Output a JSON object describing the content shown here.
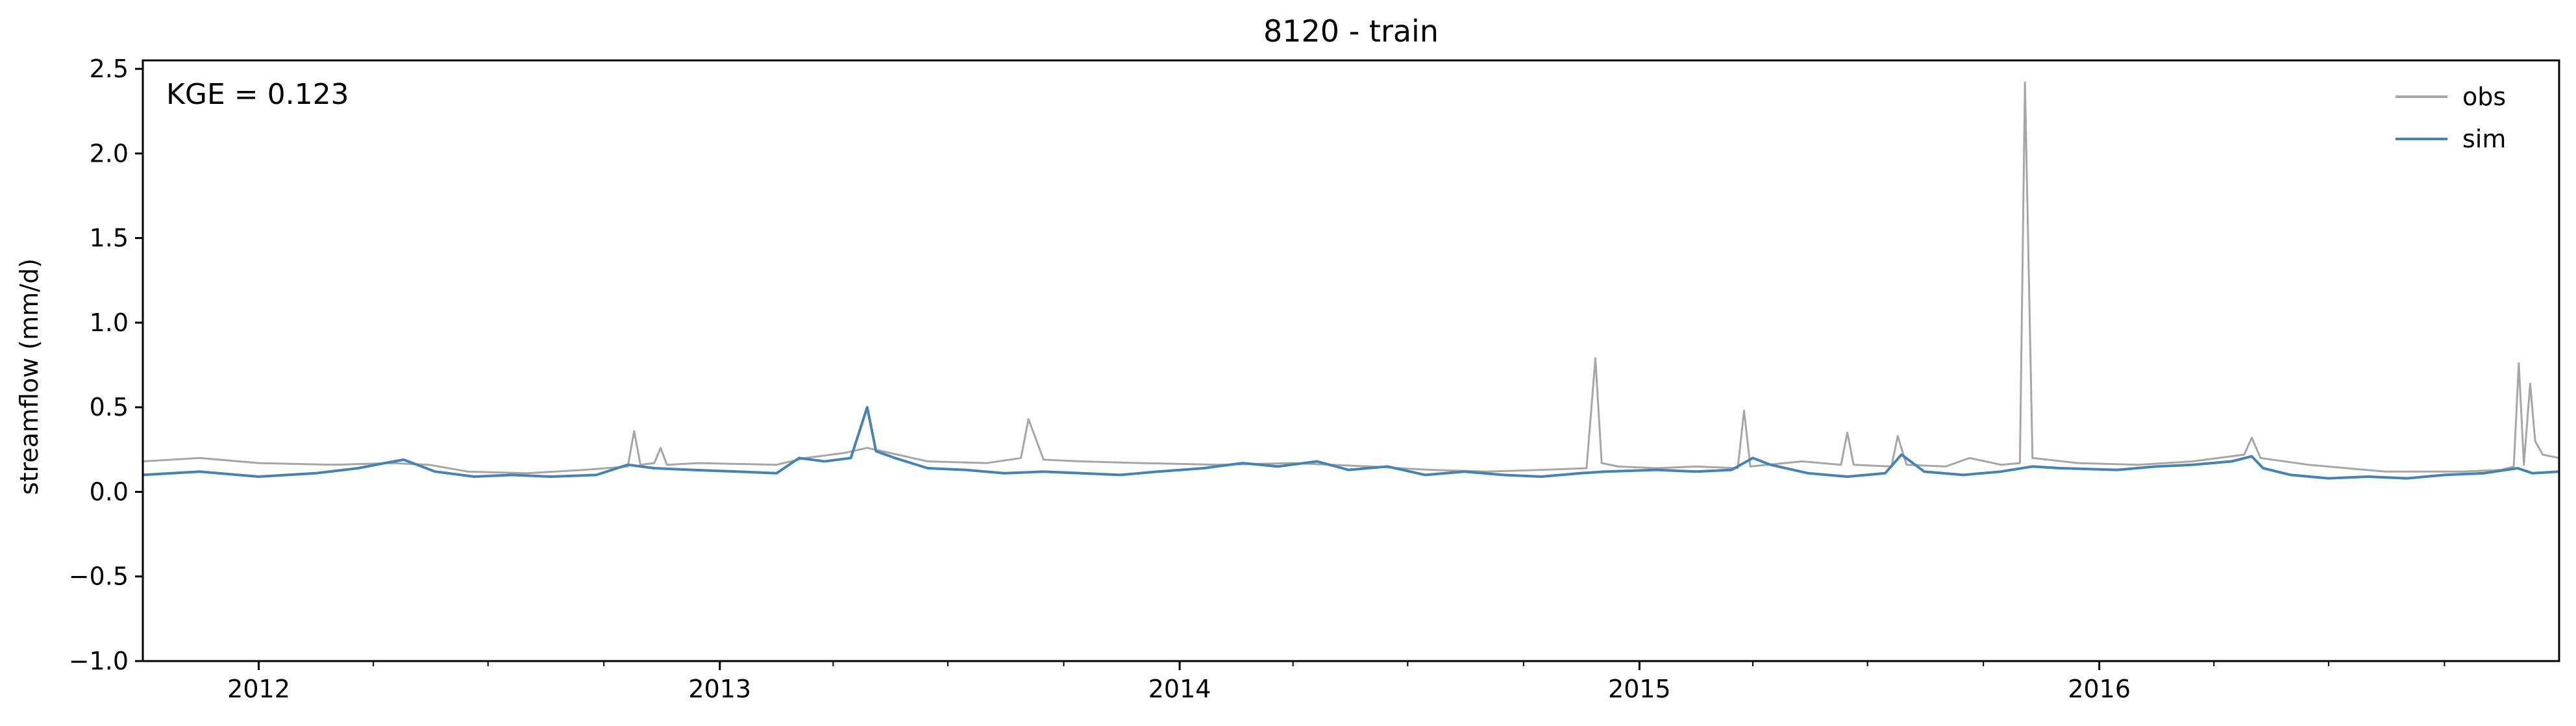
{
  "chart_data": {
    "type": "line",
    "title": "8120 - train",
    "xlabel": "",
    "ylabel": "streamflow (mm/d)",
    "annotation": "KGE = 0.123",
    "x_range": [
      "2011-10-01",
      "2016-12-31"
    ],
    "ylim": [
      -1.0,
      2.55
    ],
    "yticks": [
      -1.0,
      -0.5,
      0.0,
      0.5,
      1.0,
      1.5,
      2.0,
      2.5
    ],
    "ytick_labels": [
      "−1.0",
      "−0.5",
      "0.0",
      "0.5",
      "1.0",
      "1.5",
      "2.0",
      "2.5"
    ],
    "xticks": [
      "2012-01-01",
      "2013-01-01",
      "2014-01-01",
      "2015-01-01",
      "2016-01-01"
    ],
    "xtick_labels": [
      "2012",
      "2013",
      "2014",
      "2015",
      "2016"
    ],
    "grid": false,
    "legend": "top-right",
    "series": [
      {
        "name": "obs",
        "color": "#a6a6a6",
        "x": [
          "2011-10-01",
          "2011-11-15",
          "2012-01-01",
          "2012-03-01",
          "2012-04-15",
          "2012-05-15",
          "2012-06-15",
          "2012-08-01",
          "2012-09-15",
          "2012-10-20",
          "2012-10-25",
          "2012-10-30",
          "2012-11-10",
          "2012-11-15",
          "2012-11-20",
          "2012-12-15",
          "2013-02-15",
          "2013-03-10",
          "2013-04-10",
          "2013-04-28",
          "2013-05-10",
          "2013-06-15",
          "2013-08-01",
          "2013-08-28",
          "2013-09-03",
          "2013-09-15",
          "2013-10-15",
          "2013-12-01",
          "2014-02-01",
          "2014-04-01",
          "2014-06-01",
          "2014-07-20",
          "2014-09-01",
          "2014-10-15",
          "2014-11-20",
          "2014-11-27",
          "2014-12-02",
          "2014-12-15",
          "2015-01-15",
          "2015-02-15",
          "2015-03-20",
          "2015-03-25",
          "2015-03-30",
          "2015-05-10",
          "2015-06-10",
          "2015-06-15",
          "2015-06-20",
          "2015-07-20",
          "2015-07-25",
          "2015-08-01",
          "2015-09-01",
          "2015-09-20",
          "2015-10-15",
          "2015-10-30",
          "2015-11-03",
          "2015-11-09",
          "2015-12-15",
          "2016-02-01",
          "2016-03-15",
          "2016-04-25",
          "2016-05-01",
          "2016-05-08",
          "2016-06-15",
          "2016-08-15",
          "2016-10-15",
          "2016-11-15",
          "2016-11-25",
          "2016-11-29",
          "2016-12-03",
          "2016-12-08",
          "2016-12-12",
          "2016-12-18",
          "2016-12-31"
        ],
        "y": [
          0.18,
          0.2,
          0.17,
          0.16,
          0.17,
          0.16,
          0.12,
          0.11,
          0.13,
          0.15,
          0.36,
          0.16,
          0.17,
          0.26,
          0.16,
          0.17,
          0.16,
          0.2,
          0.23,
          0.26,
          0.24,
          0.18,
          0.17,
          0.2,
          0.43,
          0.19,
          0.18,
          0.17,
          0.16,
          0.17,
          0.15,
          0.13,
          0.12,
          0.13,
          0.14,
          0.79,
          0.17,
          0.15,
          0.14,
          0.15,
          0.14,
          0.48,
          0.15,
          0.18,
          0.16,
          0.35,
          0.16,
          0.15,
          0.33,
          0.16,
          0.15,
          0.2,
          0.16,
          0.17,
          2.42,
          0.2,
          0.17,
          0.16,
          0.18,
          0.22,
          0.32,
          0.2,
          0.16,
          0.12,
          0.12,
          0.13,
          0.15,
          0.76,
          0.16,
          0.64,
          0.3,
          0.22,
          0.2
        ]
      },
      {
        "name": "sim",
        "color": "#4682b4",
        "x": [
          "2011-10-01",
          "2011-11-15",
          "2012-01-01",
          "2012-02-15",
          "2012-03-20",
          "2012-04-10",
          "2012-04-25",
          "2012-05-20",
          "2012-06-20",
          "2012-07-20",
          "2012-08-20",
          "2012-09-25",
          "2012-10-20",
          "2012-11-10",
          "2012-12-10",
          "2013-01-15",
          "2013-02-15",
          "2013-03-05",
          "2013-03-25",
          "2013-04-15",
          "2013-04-28",
          "2013-05-05",
          "2013-05-20",
          "2013-06-15",
          "2013-07-15",
          "2013-08-15",
          "2013-09-15",
          "2013-10-15",
          "2013-11-15",
          "2013-12-15",
          "2014-01-20",
          "2014-02-20",
          "2014-03-20",
          "2014-04-20",
          "2014-05-15",
          "2014-06-15",
          "2014-07-15",
          "2014-08-15",
          "2014-09-15",
          "2014-10-15",
          "2014-11-15",
          "2014-12-05",
          "2015-01-15",
          "2015-02-15",
          "2015-03-15",
          "2015-04-01",
          "2015-04-15",
          "2015-05-15",
          "2015-06-15",
          "2015-07-15",
          "2015-07-28",
          "2015-08-15",
          "2015-09-15",
          "2015-10-15",
          "2015-11-09",
          "2015-12-01",
          "2016-01-15",
          "2016-02-15",
          "2016-03-15",
          "2016-04-15",
          "2016-05-01",
          "2016-05-10",
          "2016-06-01",
          "2016-07-01",
          "2016-08-01",
          "2016-09-01",
          "2016-10-01",
          "2016-11-01",
          "2016-11-28",
          "2016-12-10",
          "2016-12-31"
        ],
        "y": [
          0.1,
          0.12,
          0.09,
          0.11,
          0.14,
          0.17,
          0.19,
          0.12,
          0.09,
          0.1,
          0.09,
          0.1,
          0.16,
          0.14,
          0.13,
          0.12,
          0.11,
          0.2,
          0.18,
          0.2,
          0.5,
          0.24,
          0.2,
          0.14,
          0.13,
          0.11,
          0.12,
          0.11,
          0.1,
          0.12,
          0.14,
          0.17,
          0.15,
          0.18,
          0.13,
          0.15,
          0.1,
          0.12,
          0.1,
          0.09,
          0.11,
          0.12,
          0.13,
          0.12,
          0.13,
          0.2,
          0.16,
          0.11,
          0.09,
          0.11,
          0.22,
          0.12,
          0.1,
          0.12,
          0.15,
          0.14,
          0.13,
          0.15,
          0.16,
          0.18,
          0.21,
          0.14,
          0.1,
          0.08,
          0.09,
          0.08,
          0.1,
          0.11,
          0.14,
          0.11,
          0.12
        ]
      }
    ]
  }
}
